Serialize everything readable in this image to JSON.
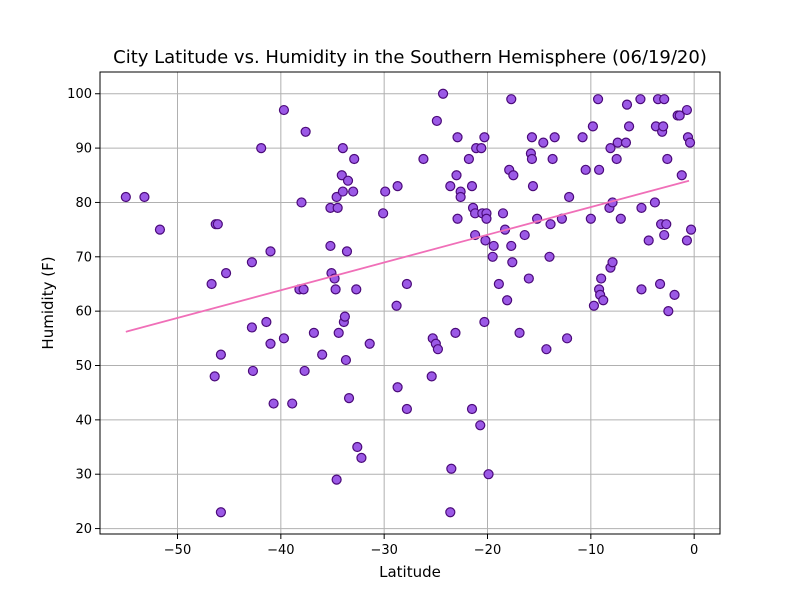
{
  "chart_data": {
    "type": "scatter",
    "title": "City Latitude vs. Humidity in the Southern Hemisphere (06/19/20)",
    "xlabel": "Latitude",
    "ylabel": "Humidity (F)",
    "xlim": [
      -57.5,
      2.5
    ],
    "ylim": [
      19,
      104
    ],
    "xticks": [
      -50,
      -40,
      -30,
      -20,
      -10,
      0
    ],
    "xtick_labels": [
      "−50",
      "−40",
      "−30",
      "−20",
      "−10",
      "0"
    ],
    "yticks": [
      20,
      30,
      40,
      50,
      60,
      70,
      80,
      90,
      100
    ],
    "ytick_labels": [
      "20",
      "30",
      "40",
      "50",
      "60",
      "70",
      "80",
      "90",
      "100"
    ],
    "grid": true,
    "colors": {
      "point_fill": "#9b59e6",
      "point_edge": "#4b0a7a",
      "regression_line": "#f06fb8",
      "grid": "#b0b0b0"
    },
    "regression": {
      "x": [
        -55,
        -0.5
      ],
      "y": [
        56.2,
        84.0
      ]
    },
    "points": [
      [
        -55,
        81
      ],
      [
        -53.2,
        81
      ],
      [
        -51.7,
        75
      ],
      [
        -46.7,
        65
      ],
      [
        -46.4,
        48
      ],
      [
        -46.3,
        76
      ],
      [
        -46.1,
        76
      ],
      [
        -45.8,
        52
      ],
      [
        -45.8,
        23
      ],
      [
        -45.3,
        67
      ],
      [
        -42.8,
        69
      ],
      [
        -42.8,
        57
      ],
      [
        -42.7,
        49
      ],
      [
        -41.9,
        90
      ],
      [
        -41.4,
        58
      ],
      [
        -41,
        54
      ],
      [
        -41,
        71
      ],
      [
        -40.7,
        43
      ],
      [
        -39.7,
        97
      ],
      [
        -39.7,
        55
      ],
      [
        -38.9,
        43
      ],
      [
        -38.2,
        64
      ],
      [
        -38,
        80
      ],
      [
        -37.8,
        64
      ],
      [
        -37.7,
        49
      ],
      [
        -37.6,
        93
      ],
      [
        -36.8,
        56
      ],
      [
        -36,
        52
      ],
      [
        -35.2,
        79
      ],
      [
        -35.2,
        72
      ],
      [
        -35.1,
        67
      ],
      [
        -34.8,
        66
      ],
      [
        -34.7,
        64
      ],
      [
        -34.6,
        81
      ],
      [
        -34.6,
        29
      ],
      [
        -34.5,
        79
      ],
      [
        -34.4,
        56
      ],
      [
        -34.1,
        85
      ],
      [
        -34,
        90
      ],
      [
        -34,
        82
      ],
      [
        -33.9,
        58
      ],
      [
        -33.8,
        59
      ],
      [
        -33.7,
        51
      ],
      [
        -33.6,
        71
      ],
      [
        -33.5,
        84
      ],
      [
        -33.4,
        44
      ],
      [
        -33,
        82
      ],
      [
        -32.9,
        88
      ],
      [
        -32.7,
        64
      ],
      [
        -32.6,
        35
      ],
      [
        -32.2,
        33
      ],
      [
        -31.4,
        54
      ],
      [
        -30.1,
        78
      ],
      [
        -29.9,
        82
      ],
      [
        -28.8,
        61
      ],
      [
        -28.7,
        46
      ],
      [
        -28.7,
        83
      ],
      [
        -27.8,
        42
      ],
      [
        -27.8,
        65
      ],
      [
        -26.2,
        88
      ],
      [
        -25.4,
        48
      ],
      [
        -25.3,
        55
      ],
      [
        -25,
        54
      ],
      [
        -24.9,
        95
      ],
      [
        -24.8,
        53
      ],
      [
        -24.3,
        100
      ],
      [
        -23.6,
        83
      ],
      [
        -23.6,
        23
      ],
      [
        -23.5,
        31
      ],
      [
        -23.1,
        56
      ],
      [
        -23,
        85
      ],
      [
        -22.9,
        92
      ],
      [
        -22.9,
        77
      ],
      [
        -22.6,
        82
      ],
      [
        -22.6,
        81
      ],
      [
        -21.8,
        88
      ],
      [
        -21.5,
        42
      ],
      [
        -21.5,
        83
      ],
      [
        -21.4,
        79
      ],
      [
        -21.2,
        74
      ],
      [
        -21.2,
        78
      ],
      [
        -21.1,
        90
      ],
      [
        -20.7,
        39
      ],
      [
        -20.6,
        90
      ],
      [
        -20.5,
        78
      ],
      [
        -20.3,
        92
      ],
      [
        -20.3,
        58
      ],
      [
        -20.2,
        73
      ],
      [
        -20.1,
        78
      ],
      [
        -20.1,
        77
      ],
      [
        -19.9,
        30
      ],
      [
        -19.5,
        70
      ],
      [
        -19.4,
        72
      ],
      [
        -18.9,
        65
      ],
      [
        -18.5,
        78
      ],
      [
        -18.3,
        75
      ],
      [
        -18.1,
        62
      ],
      [
        -17.9,
        86
      ],
      [
        -17.7,
        72
      ],
      [
        -17.7,
        99
      ],
      [
        -17.6,
        69
      ],
      [
        -17.5,
        85
      ],
      [
        -16.9,
        56
      ],
      [
        -16.4,
        74
      ],
      [
        -16,
        66
      ],
      [
        -15.8,
        89
      ],
      [
        -15.7,
        88
      ],
      [
        -15.7,
        92
      ],
      [
        -15.6,
        83
      ],
      [
        -15.2,
        77
      ],
      [
        -14.6,
        91
      ],
      [
        -14.3,
        53
      ],
      [
        -14,
        70
      ],
      [
        -13.9,
        76
      ],
      [
        -13.7,
        88
      ],
      [
        -13.5,
        92
      ],
      [
        -12.8,
        77
      ],
      [
        -12.3,
        55
      ],
      [
        -12.1,
        81
      ],
      [
        -10.8,
        92
      ],
      [
        -10.5,
        86
      ],
      [
        -10,
        77
      ],
      [
        -9.8,
        94
      ],
      [
        -9.7,
        61
      ],
      [
        -9.3,
        99
      ],
      [
        -9.2,
        64
      ],
      [
        -9.2,
        86
      ],
      [
        -9.1,
        63
      ],
      [
        -9,
        66
      ],
      [
        -8.8,
        62
      ],
      [
        -8.2,
        79
      ],
      [
        -8.1,
        90
      ],
      [
        -8.1,
        68
      ],
      [
        -7.9,
        80
      ],
      [
        -7.9,
        69
      ],
      [
        -7.5,
        88
      ],
      [
        -7.4,
        91
      ],
      [
        -7.1,
        77
      ],
      [
        -6.6,
        91
      ],
      [
        -6.5,
        98
      ],
      [
        -6.3,
        94
      ],
      [
        -5.2,
        99
      ],
      [
        -5.1,
        79
      ],
      [
        -5.1,
        64
      ],
      [
        -4.4,
        73
      ],
      [
        -3.8,
        80
      ],
      [
        -3.7,
        94
      ],
      [
        -3.5,
        99
      ],
      [
        -3.3,
        65
      ],
      [
        -3.2,
        76
      ],
      [
        -3.1,
        93
      ],
      [
        -3,
        94
      ],
      [
        -2.9,
        99
      ],
      [
        -2.9,
        74
      ],
      [
        -2.7,
        76
      ],
      [
        -2.6,
        88
      ],
      [
        -2.5,
        60
      ],
      [
        -1.9,
        63
      ],
      [
        -1.6,
        96
      ],
      [
        -1.4,
        96
      ],
      [
        -1.2,
        85
      ],
      [
        -0.7,
        73
      ],
      [
        -0.7,
        97
      ],
      [
        -0.6,
        92
      ],
      [
        -0.4,
        91
      ],
      [
        -0.3,
        75
      ]
    ]
  }
}
